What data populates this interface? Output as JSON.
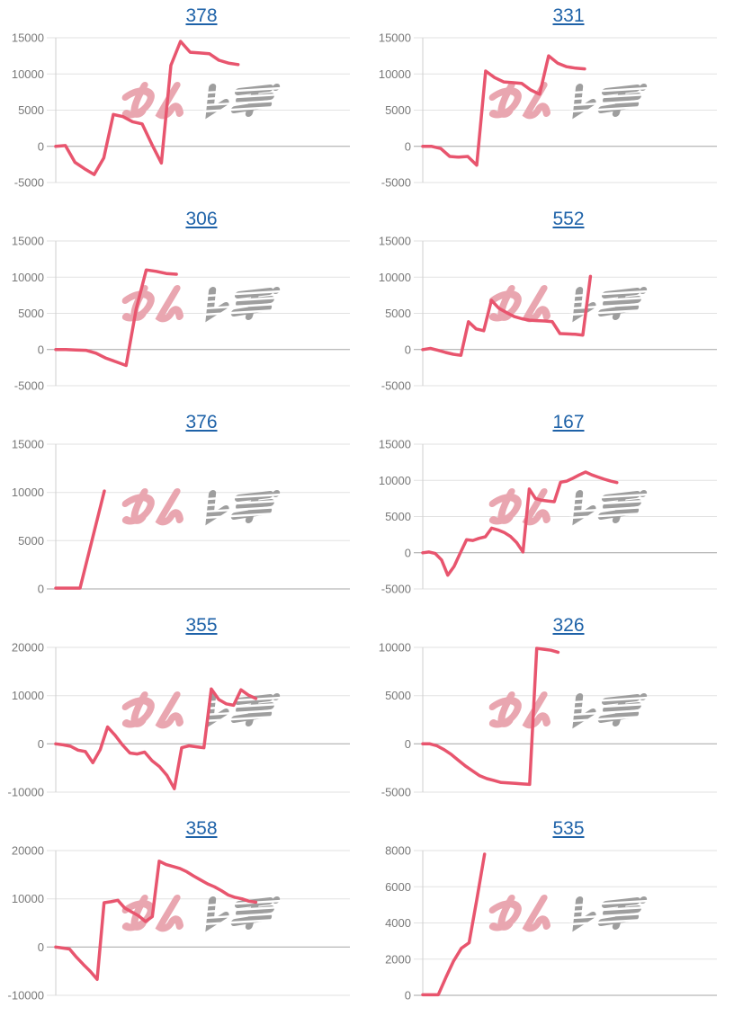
{
  "colors": {
    "background": "#ffffff",
    "line": "#e8556e",
    "title_link": "#1e62a8",
    "axis_label": "#787878",
    "gridline": "#e2e2e2",
    "zero_line": "#a6a6a6",
    "axis_line": "#cfcfcf",
    "watermark_pink": "#e9a6b0",
    "watermark_gray": "#9e9e9e"
  },
  "watermark": {
    "text": "みんレポ"
  },
  "chart_data": [
    {
      "title": "378",
      "type": "line",
      "legend": "none",
      "grid": "horizontal",
      "y_ticks": [
        15000,
        10000,
        5000,
        0,
        -5000
      ],
      "ylim": [
        -5000,
        15000
      ],
      "end_frac": 0.62,
      "values": [
        0,
        100,
        -2200,
        -3100,
        -3900,
        -1600,
        4400,
        4100,
        3400,
        3100,
        300,
        -2300,
        11200,
        14500,
        13000,
        12900,
        12800,
        11900,
        11500,
        11300
      ]
    },
    {
      "title": "331",
      "type": "line",
      "legend": "none",
      "grid": "horizontal",
      "y_ticks": [
        15000,
        10000,
        5000,
        0,
        -5000
      ],
      "ylim": [
        -5000,
        15000
      ],
      "end_frac": 0.55,
      "values": [
        0,
        0,
        -300,
        -1400,
        -1500,
        -1400,
        -2600,
        10400,
        9500,
        8900,
        8800,
        8700,
        7800,
        7200,
        12500,
        11500,
        11000,
        10800,
        10700
      ]
    },
    {
      "title": "306",
      "type": "line",
      "legend": "none",
      "grid": "horizontal",
      "y_ticks": [
        15000,
        10000,
        5000,
        0,
        -5000
      ],
      "ylim": [
        -5000,
        15000
      ],
      "end_frac": 0.41,
      "values": [
        0,
        0,
        -50,
        -100,
        -500,
        -1200,
        -1700,
        -2200,
        5600,
        11000,
        10800,
        10500,
        10400
      ]
    },
    {
      "title": "552",
      "type": "line",
      "legend": "none",
      "grid": "horizontal",
      "y_ticks": [
        15000,
        10000,
        5000,
        0,
        -5000
      ],
      "ylim": [
        -5000,
        15000
      ],
      "end_frac": 0.57,
      "values": [
        0,
        150,
        -100,
        -400,
        -650,
        -800,
        3850,
        2850,
        2600,
        6800,
        5700,
        5100,
        4550,
        4250,
        4050,
        4000,
        3950,
        3850,
        2200,
        2150,
        2100,
        2000,
        10100
      ]
    },
    {
      "title": "376",
      "type": "line",
      "legend": "none",
      "grid": "horizontal",
      "y_ticks": [
        15000,
        10000,
        5000,
        0
      ],
      "ylim": [
        0,
        15000
      ],
      "end_frac": 0.165,
      "values": [
        80,
        80,
        10150
      ]
    },
    {
      "title": "167",
      "type": "line",
      "legend": "none",
      "grid": "horizontal",
      "y_ticks": [
        15000,
        10000,
        5000,
        0,
        -5000
      ],
      "ylim": [
        -5000,
        15000
      ],
      "end_frac": 0.66,
      "values": [
        0,
        100,
        -100,
        -1000,
        -3100,
        -1900,
        0,
        1800,
        1700,
        2000,
        2200,
        3400,
        3150,
        2800,
        2250,
        1400,
        100,
        8800,
        7500,
        7250,
        7150,
        7050,
        9750,
        9900,
        10300,
        10750,
        11150,
        10750,
        10450,
        10150,
        9900,
        9700
      ]
    },
    {
      "title": "355",
      "type": "line",
      "legend": "none",
      "grid": "horizontal",
      "y_ticks": [
        20000,
        10000,
        0,
        -10000
      ],
      "ylim": [
        -10000,
        20000
      ],
      "end_frac": 0.68,
      "values": [
        0,
        -200,
        -500,
        -1300,
        -1600,
        -3900,
        -1200,
        3500,
        1800,
        -200,
        -1900,
        -2100,
        -1700,
        -3500,
        -4700,
        -6500,
        -9300,
        -800,
        -400,
        -600,
        -800,
        11400,
        9200,
        8300,
        8000,
        11200,
        10100,
        9400
      ]
    },
    {
      "title": "326",
      "type": "line",
      "legend": "none",
      "grid": "horizontal",
      "y_ticks": [
        10000,
        5000,
        0,
        -5000
      ],
      "ylim": [
        -5000,
        10000
      ],
      "end_frac": 0.46,
      "values": [
        0,
        0,
        -200,
        -600,
        -1100,
        -1700,
        -2300,
        -2800,
        -3300,
        -3600,
        -3800,
        -4000,
        -4050,
        -4100,
        -4150,
        -4200,
        9900,
        9800,
        9700,
        9500
      ]
    },
    {
      "title": "358",
      "type": "line",
      "legend": "none",
      "grid": "horizontal",
      "y_ticks": [
        20000,
        10000,
        0,
        -10000
      ],
      "ylim": [
        -10000,
        20000
      ],
      "end_frac": 0.68,
      "values": [
        0,
        -200,
        -400,
        -2100,
        -3600,
        -5000,
        -6700,
        9200,
        9400,
        9700,
        8100,
        7300,
        6500,
        5300,
        6300,
        17800,
        17100,
        16700,
        16300,
        15600,
        14700,
        13900,
        13100,
        12500,
        11700,
        10800,
        10300,
        10000,
        9500,
        9300
      ]
    },
    {
      "title": "535",
      "type": "line",
      "legend": "none",
      "grid": "horizontal",
      "y_ticks": [
        8000,
        6000,
        4000,
        2000,
        0
      ],
      "ylim": [
        0,
        8000
      ],
      "end_frac": 0.21,
      "values": [
        30,
        30,
        30,
        1000,
        1900,
        2600,
        2900,
        5300,
        7800
      ]
    }
  ]
}
